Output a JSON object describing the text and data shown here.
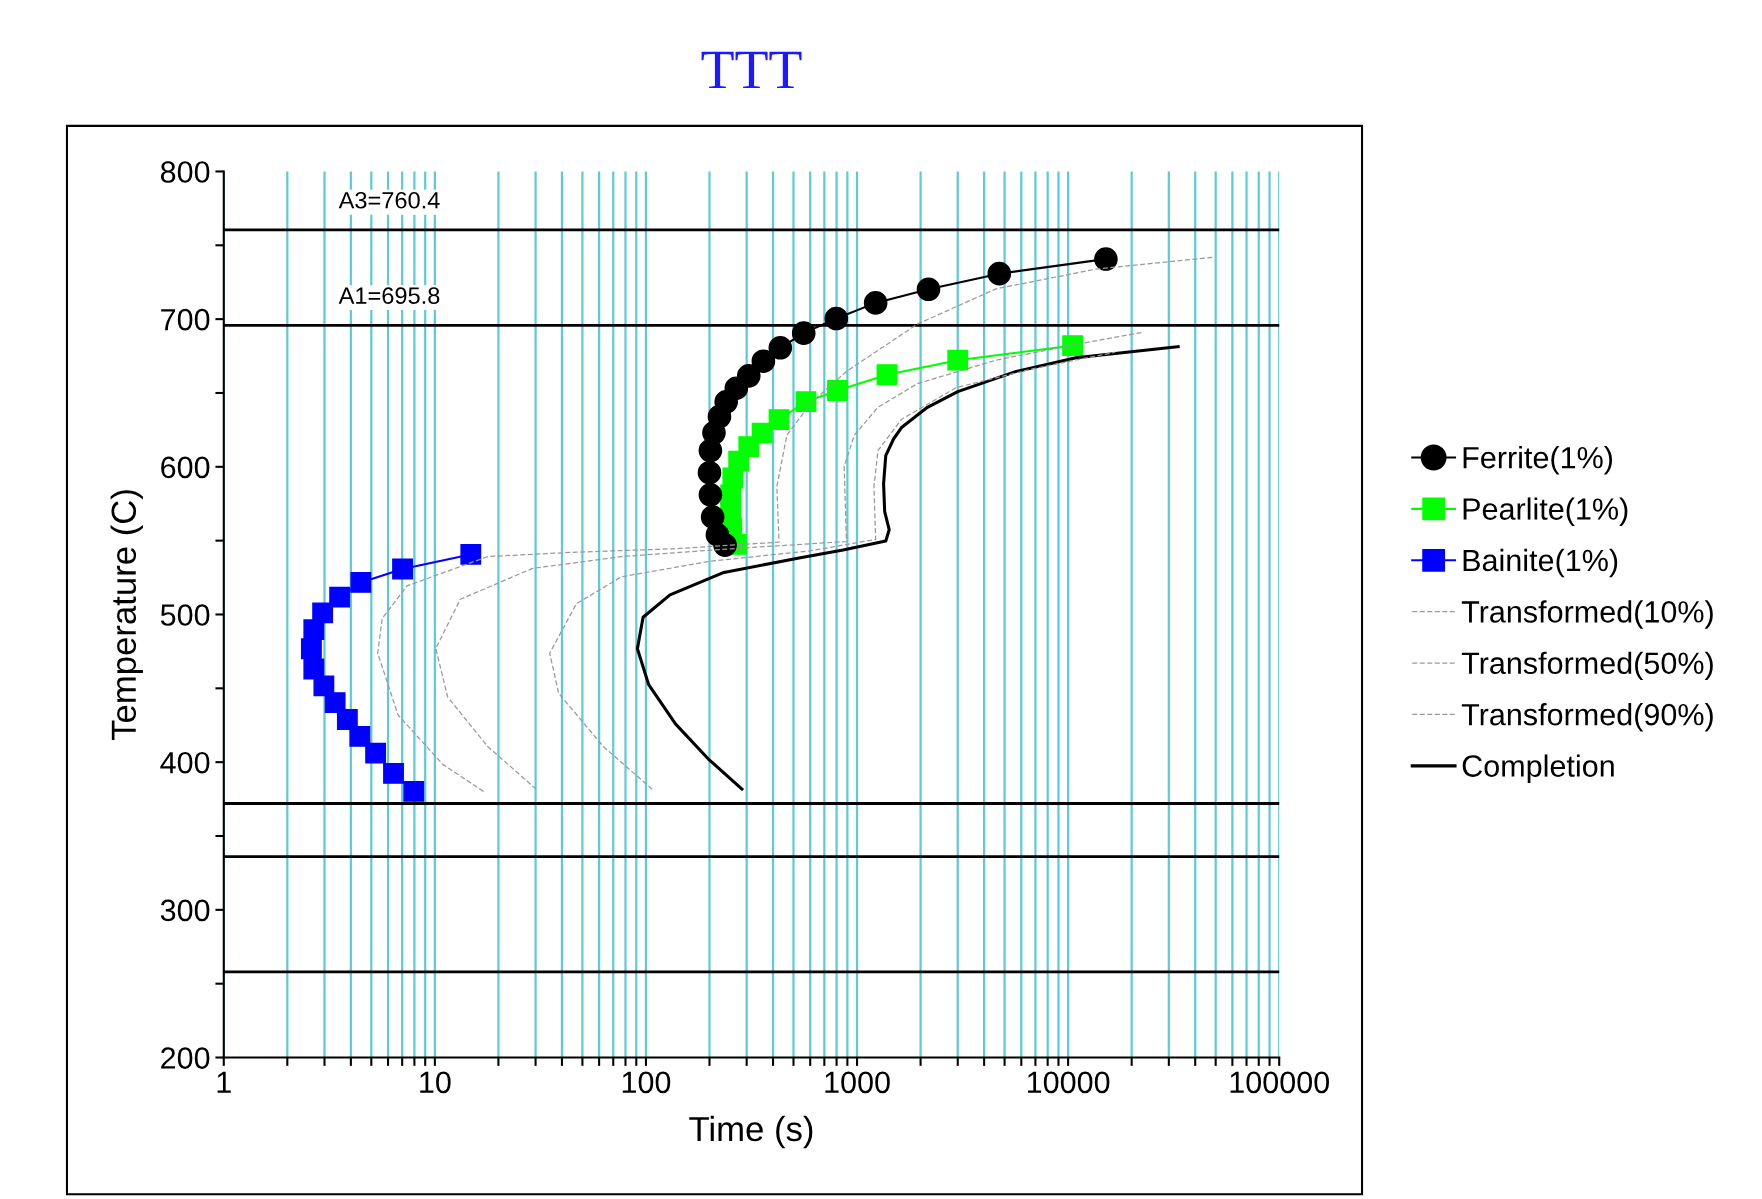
{
  "chart_data": {
    "type": "line",
    "title": "TTT",
    "xlabel": "Time (s)",
    "ylabel": "Temperature (C)",
    "log": "x",
    "grid": "x",
    "legend": "right",
    "xlim": [
      1,
      100000
    ],
    "xticks": [
      1,
      {
        "value": 2,
        "label": null
      },
      {
        "value": 3,
        "label": null
      },
      {
        "value": 4,
        "label": null
      },
      {
        "value": 5,
        "label": null
      },
      {
        "value": 6,
        "label": null
      },
      {
        "value": 7,
        "label": null
      },
      {
        "value": 8,
        "label": null
      },
      {
        "value": 9,
        "label": null
      },
      10,
      {
        "value": 20,
        "label": null
      },
      {
        "value": 30,
        "label": null
      },
      {
        "value": 40,
        "label": null
      },
      {
        "value": 50,
        "label": null
      },
      {
        "value": 60,
        "label": null
      },
      {
        "value": 70,
        "label": null
      },
      {
        "value": 80,
        "label": null
      },
      {
        "value": 90,
        "label": null
      },
      100,
      {
        "value": 200,
        "label": null
      },
      {
        "value": 300,
        "label": null
      },
      {
        "value": 400,
        "label": null
      },
      {
        "value": 500,
        "label": null
      },
      {
        "value": 600,
        "label": null
      },
      {
        "value": 700,
        "label": null
      },
      {
        "value": 800,
        "label": null
      },
      {
        "value": 900,
        "label": null
      },
      1000,
      {
        "value": 2000,
        "label": null
      },
      {
        "value": 3000,
        "label": null
      },
      {
        "value": 4000,
        "label": null
      },
      {
        "value": 5000,
        "label": null
      },
      {
        "value": 6000,
        "label": null
      },
      {
        "value": 7000,
        "label": null
      },
      {
        "value": 8000,
        "label": null
      },
      {
        "value": 9000,
        "label": null
      },
      10000,
      {
        "value": 20000,
        "label": null
      },
      {
        "value": 30000,
        "label": null
      },
      {
        "value": 40000,
        "label": null
      },
      {
        "value": 50000,
        "label": null
      },
      {
        "value": 60000,
        "label": null
      },
      {
        "value": 70000,
        "label": null
      },
      {
        "value": 80000,
        "label": null
      },
      {
        "value": 90000,
        "label": null
      },
      100000
    ],
    "ylim": [
      200,
      800
    ],
    "yticks": [
      200,
      {
        "value": 250,
        "label": null
      },
      300,
      {
        "value": 350,
        "label": null
      },
      400,
      {
        "value": 450,
        "label": null
      },
      500,
      {
        "value": 550,
        "label": null
      },
      600,
      {
        "value": 650,
        "label": null
      },
      700,
      {
        "value": 750,
        "label": null
      },
      800
    ],
    "ref_lines": [
      {
        "axis": "y",
        "value": 760.4,
        "label": "A3=760.4",
        "color": "#000000"
      },
      {
        "axis": "y",
        "value": 695.8,
        "label": "A1=695.8",
        "color": "#000000"
      },
      {
        "axis": "y",
        "value": 372,
        "color": "#000000"
      },
      {
        "axis": "y",
        "value": 336,
        "color": "#000000"
      },
      {
        "axis": "y",
        "value": 258,
        "color": "#000000"
      }
    ],
    "series": [
      {
        "name": "Ferrite(1%)",
        "color": "#000000",
        "marker": "circle",
        "line_style": "solid",
        "x": [
          237,
          218,
          207,
          202,
          200,
          202,
          210,
          223,
          240,
          268,
          307,
          360,
          433,
          559,
          798,
          1225,
          2180,
          4720,
          15100
        ],
        "values": [
          547,
          554,
          566,
          581,
          596,
          611,
          623,
          634,
          644,
          653.2,
          661.6,
          671.5,
          680.6,
          690.5,
          700.4,
          711,
          720.2,
          730.8,
          740.7
        ]
      },
      {
        "name": "Pearlite(1%)",
        "color": "#00ff00",
        "marker": "square",
        "line_style": "solid",
        "x": [
          268,
          255,
          252,
          252,
          258,
          275,
          307,
          355,
          427,
          573,
          808,
          1386,
          3000,
          10500
        ],
        "values": [
          547.5,
          558.2,
          569.6,
          581,
          592.4,
          603.8,
          613.7,
          622.8,
          632,
          644.1,
          651.7,
          662.4,
          672.2,
          682.1
        ]
      },
      {
        "name": "Bainite(1%)",
        "color": "#0000ff",
        "marker": "square",
        "line_style": "solid",
        "x": [
          7.94,
          6.37,
          5.24,
          4.41,
          3.85,
          3.37,
          2.98,
          2.67,
          2.6,
          2.67,
          2.94,
          3.54,
          4.46,
          7.03,
          14.8
        ],
        "values": [
          380.2,
          392.4,
          406.1,
          417.5,
          428.9,
          440.3,
          451.7,
          463.1,
          476.8,
          489.7,
          501.1,
          511.8,
          521.7,
          530.8,
          540.7
        ]
      },
      {
        "name": "Transformed(10%)",
        "color": "#999999",
        "marker": "none",
        "line_style": "dashed",
        "x": [
          17.0,
          10.9,
          6.69,
          5.36,
          5.63,
          7.38,
          17.8,
          46.8,
          136,
          427,
          417,
          465,
          602,
          891,
          1930,
          4550,
          13500,
          49100
        ],
        "values": [
          380.2,
          398.5,
          432,
          473.8,
          497.3,
          519.4,
          539.2,
          542.2,
          544.5,
          549,
          586.7,
          621.4,
          642.9,
          664.6,
          696.6,
          720.5,
          733.8,
          741.9
        ]
      },
      {
        "name": "Transformed(50%)",
        "color": "#999999",
        "marker": "none",
        "line_style": "dashed",
        "x": [
          30.2,
          17.8,
          11.5,
          10.1,
          13.2,
          29.0,
          76.4,
          252,
          891,
          869,
          971,
          1256,
          1930,
          4550,
          10900,
          22400
        ],
        "values": [
          381.7,
          410.6,
          444.1,
          477,
          510.3,
          531.2,
          539.2,
          544.5,
          549.4,
          600.2,
          621.4,
          640.3,
          656.3,
          672.2,
          682.9,
          691
        ]
      },
      {
        "name": "Transformed(90%)",
        "color": "#999999",
        "marker": "none",
        "line_style": "dashed",
        "x": [
          107,
          62.8,
          38.6,
          35.0,
          46.8,
          76.4,
          202,
          594,
          1225,
          1203,
          1256,
          1625,
          2960,
          7050,
          16700
        ],
        "values": [
          381.7,
          410.6,
          446.6,
          473.8,
          507.2,
          525.5,
          536.1,
          543,
          550.8,
          586.7,
          611,
          632.2,
          653.7,
          666.9,
          677.6
        ]
      },
      {
        "name": "Completion",
        "color": "#000000",
        "marker": "none",
        "line_style": "solid",
        "x": [
          285,
          197,
          138,
          103,
          91.1,
          96.9,
          130,
          234,
          539,
          859,
          1368,
          1420,
          1352,
          1336,
          1368,
          1491,
          1625,
          2155,
          3000,
          5680,
          10900,
          33200
        ],
        "values": [
          381.7,
          402.3,
          425.9,
          452.5,
          476.8,
          498.1,
          513.3,
          528.5,
          538.4,
          543.7,
          549.8,
          557.4,
          569.6,
          588.6,
          607.6,
          619,
          626.6,
          640.3,
          650.9,
          664.6,
          673.8,
          681.4
        ]
      }
    ]
  }
}
